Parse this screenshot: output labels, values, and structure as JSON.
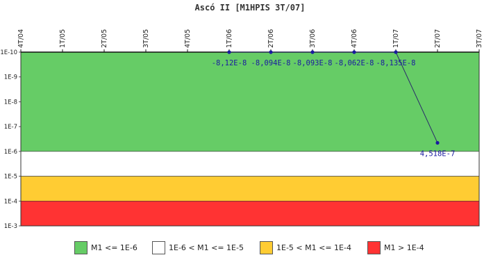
{
  "chart_data": {
    "type": "line",
    "title": "Ascó II [M1HPIS 3T/07]",
    "xlabel": "",
    "ylabel": "",
    "y_scale": "log",
    "y_inverted": true,
    "categories": [
      "4T/04",
      "1T/05",
      "2T/05",
      "3T/05",
      "4T/05",
      "1T/06",
      "2T/06",
      "3T/06",
      "4T/06",
      "1T/07",
      "2T/07",
      "3T/07"
    ],
    "y_ticks": [
      "1E-10",
      "1E-9",
      "1E-8",
      "1E-7",
      "1E-6",
      "1E-5",
      "1E-4",
      "1E-3"
    ],
    "ylim": [
      1e-10,
      0.001
    ],
    "series": [
      {
        "values": [
          null,
          null,
          null,
          null,
          null,
          -8.12e-08,
          -8.094e-08,
          -8.093e-08,
          -8.062e-08,
          -8.135e-08,
          4.518e-07,
          null
        ],
        "labels": [
          "",
          "",
          "",
          "",
          "",
          "-8,12E-8",
          "-8,094E-8",
          "-8,093E-8",
          "-8,062E-8",
          "-8,135E-8",
          "4,518E-7",
          ""
        ],
        "color": "#2a2a6a"
      }
    ],
    "bands": [
      {
        "from": 1e-10,
        "to": 1e-06,
        "color": "#66cc66",
        "label": "M1 <= 1E-6"
      },
      {
        "from": 1e-06,
        "to": 1e-05,
        "color": "#ffffff",
        "label": "1E-6 < M1 <= 1E-5"
      },
      {
        "from": 1e-05,
        "to": 0.0001,
        "color": "#ffcc33",
        "label": "1E-5 < M1 <= 1E-4"
      },
      {
        "from": 0.0001,
        "to": 0.001,
        "color": "#ff3333",
        "label": "M1 > 1E-4"
      }
    ],
    "grid": false,
    "legend_position": "bottom"
  }
}
